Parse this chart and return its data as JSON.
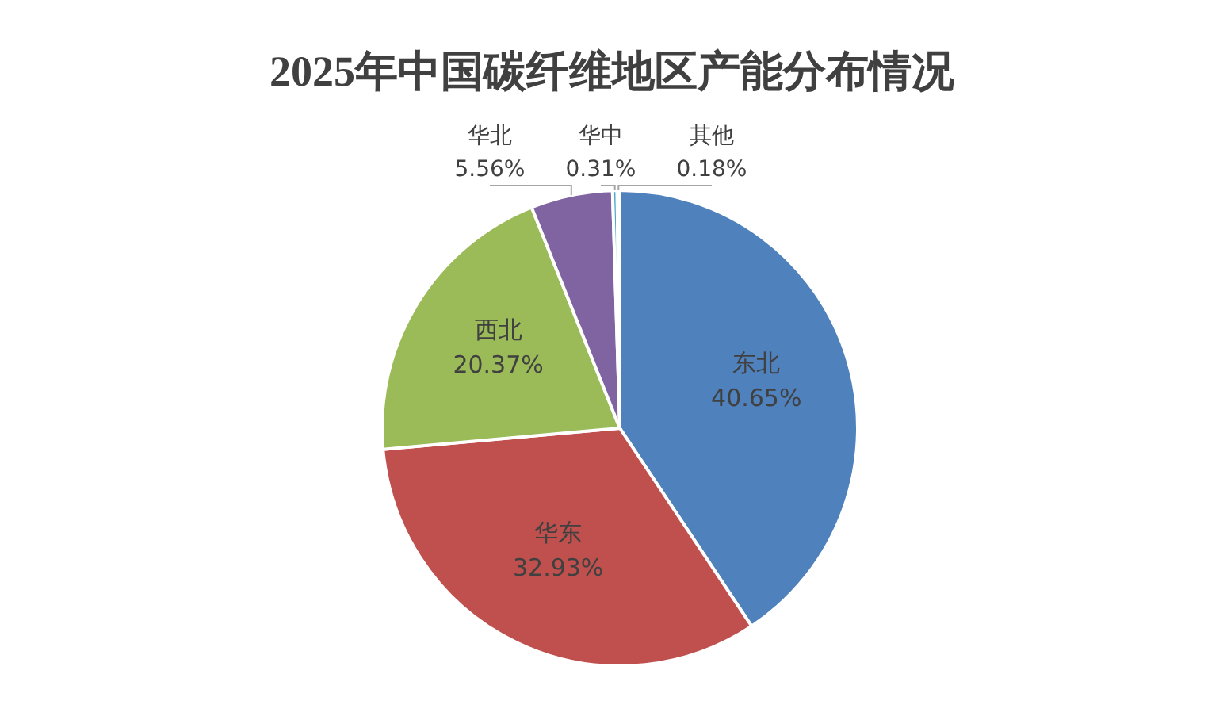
{
  "chart_data": {
    "type": "pie",
    "title": "2025年中国碳纤维地区产能分布情况",
    "categories": [
      "东北",
      "华东",
      "西北",
      "华北",
      "华中",
      "其他"
    ],
    "values": [
      40.65,
      32.93,
      20.37,
      5.56,
      0.31,
      0.18
    ],
    "value_labels": [
      "40.65%",
      "32.93%",
      "20.37%",
      "5.56%",
      "0.31%",
      "0.18%"
    ],
    "colors": [
      "#4f81bd",
      "#c0504d",
      "#9bbb59",
      "#8064a2",
      "#4bacc6",
      "#f79646"
    ],
    "legend": false
  }
}
